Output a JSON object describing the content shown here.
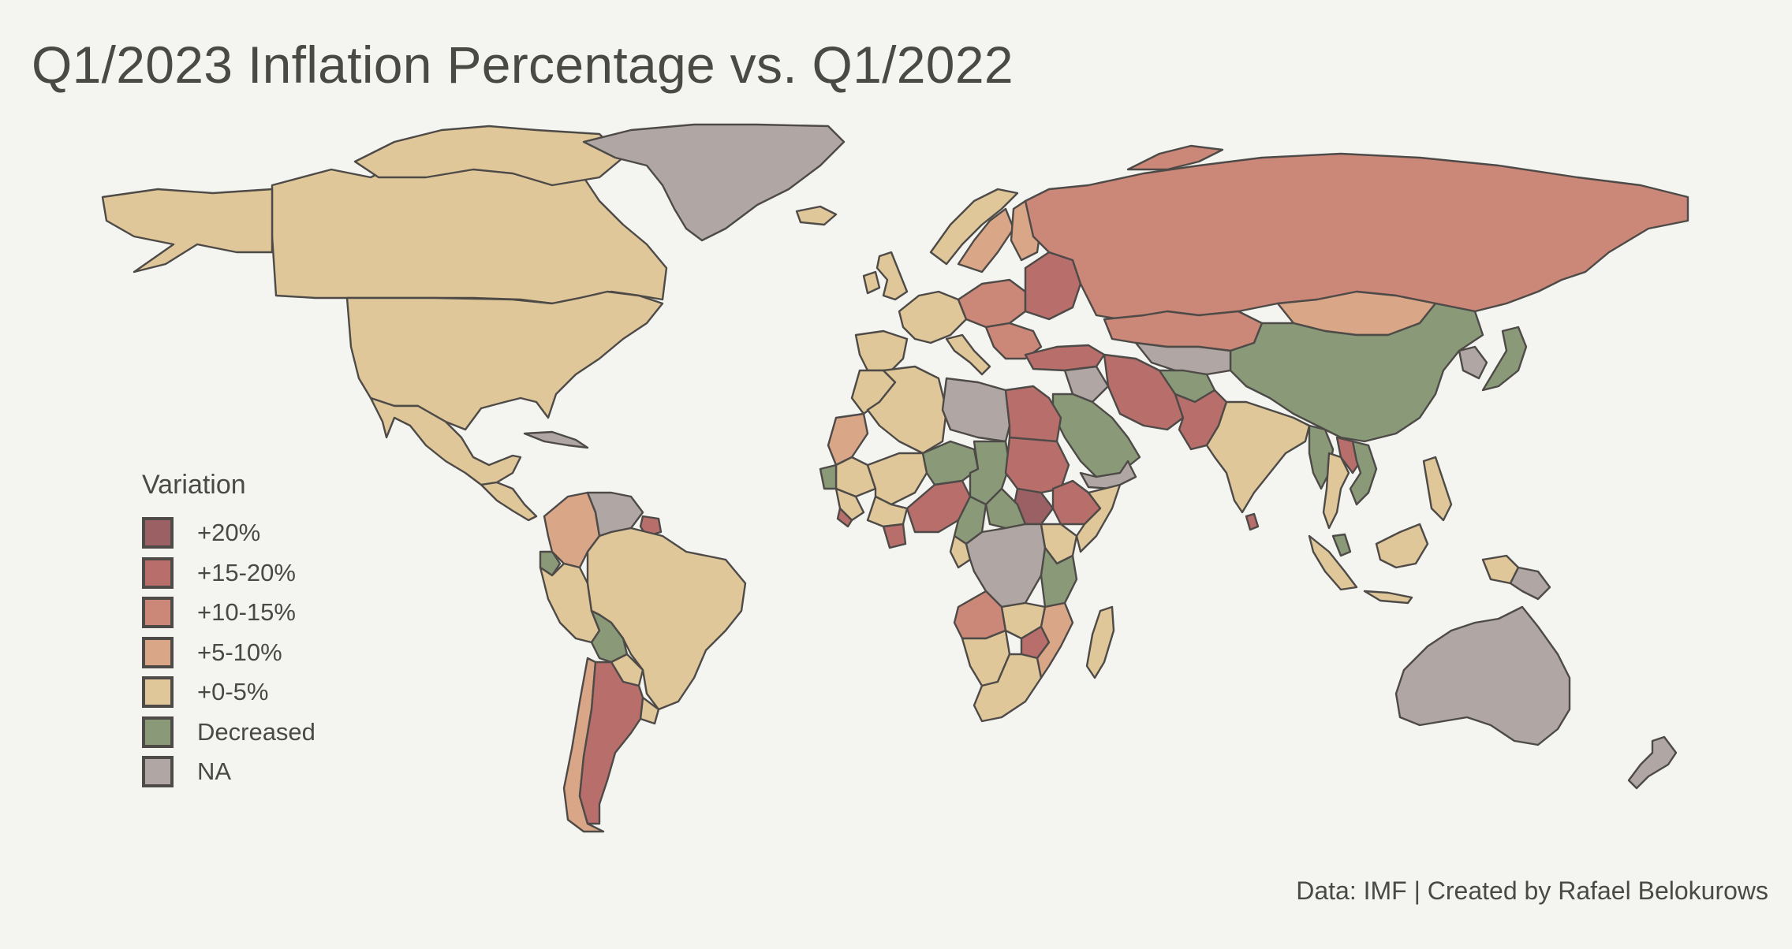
{
  "title": "Q1/2023 Inflation Percentage vs. Q1/2022",
  "caption": "Data: IMF | Created by Rafael Belokurows",
  "legend": {
    "title": "Variation",
    "items": [
      {
        "label": "+20%",
        "color": "#9a6064"
      },
      {
        "label": "+15-20%",
        "color": "#b86e6a"
      },
      {
        "label": "+10-15%",
        "color": "#cb8778"
      },
      {
        "label": "+5-10%",
        "color": "#d9a688"
      },
      {
        "label": "+0-5%",
        "color": "#dfc799"
      },
      {
        "label": "Decreased",
        "color": "#8a9a78"
      },
      {
        "label": "NA",
        "color": "#b0a7a4"
      }
    ]
  },
  "regions": [
    {
      "name": "Canada",
      "category": "+0-5%"
    },
    {
      "name": "United States",
      "category": "+0-5%"
    },
    {
      "name": "Alaska",
      "category": "+0-5%"
    },
    {
      "name": "Greenland",
      "category": "NA"
    },
    {
      "name": "Mexico",
      "category": "+0-5%"
    },
    {
      "name": "Cuba",
      "category": "NA"
    },
    {
      "name": "Colombia",
      "category": "+5-10%"
    },
    {
      "name": "Venezuela",
      "category": "NA"
    },
    {
      "name": "Suriname",
      "category": "+15-20%"
    },
    {
      "name": "Ecuador",
      "category": "Decreased"
    },
    {
      "name": "Peru",
      "category": "+0-5%"
    },
    {
      "name": "Brazil",
      "category": "+0-5%"
    },
    {
      "name": "Bolivia",
      "category": "Decreased"
    },
    {
      "name": "Paraguay",
      "category": "+0-5%"
    },
    {
      "name": "Uruguay",
      "category": "+0-5%"
    },
    {
      "name": "Chile",
      "category": "+5-10%"
    },
    {
      "name": "Argentina",
      "category": "+15-20%"
    },
    {
      "name": "Iceland",
      "category": "+0-5%"
    },
    {
      "name": "United Kingdom",
      "category": "+0-5%"
    },
    {
      "name": "Ireland",
      "category": "+0-5%"
    },
    {
      "name": "Norway",
      "category": "+0-5%"
    },
    {
      "name": "Sweden",
      "category": "+5-10%"
    },
    {
      "name": "Finland",
      "category": "+5-10%"
    },
    {
      "name": "Western Europe",
      "category": "+0-5%"
    },
    {
      "name": "Iberia",
      "category": "+0-5%"
    },
    {
      "name": "Italy",
      "category": "+0-5%"
    },
    {
      "name": "Central Europe",
      "category": "+10-15%"
    },
    {
      "name": "Eastern Europe",
      "category": "+15-20%"
    },
    {
      "name": "Balkans",
      "category": "+10-15%"
    },
    {
      "name": "Russia",
      "category": "+10-15%"
    },
    {
      "name": "Kazakhstan",
      "category": "+10-15%"
    },
    {
      "name": "Mongolia",
      "category": "+5-10%"
    },
    {
      "name": "China",
      "category": "Decreased"
    },
    {
      "name": "Korea",
      "category": "NA"
    },
    {
      "name": "Japan",
      "category": "Decreased"
    },
    {
      "name": "Turkey",
      "category": "+15-20%"
    },
    {
      "name": "Central Asia",
      "category": "NA"
    },
    {
      "name": "Iran",
      "category": "+15-20%"
    },
    {
      "name": "Afghanistan",
      "category": "Decreased"
    },
    {
      "name": "Pakistan",
      "category": "+15-20%"
    },
    {
      "name": "Saudi Arabia",
      "category": "Decreased"
    },
    {
      "name": "Yemen",
      "category": "NA"
    },
    {
      "name": "Iraq",
      "category": "NA"
    },
    {
      "name": "India",
      "category": "+0-5%"
    },
    {
      "name": "Sri Lanka",
      "category": "+15-20%"
    },
    {
      "name": "Myanmar",
      "category": "Decreased"
    },
    {
      "name": "Thailand",
      "category": "+0-5%"
    },
    {
      "name": "Laos",
      "category": "+15-20%"
    },
    {
      "name": "Vietnam",
      "category": "Decreased"
    },
    {
      "name": "Malaysia",
      "category": "Decreased"
    },
    {
      "name": "Indonesia Sumatra",
      "category": "+0-5%"
    },
    {
      "name": "Indonesia Java",
      "category": "+0-5%"
    },
    {
      "name": "Borneo",
      "category": "+0-5%"
    },
    {
      "name": "Philippines",
      "category": "+0-5%"
    },
    {
      "name": "New Guinea",
      "category": "+0-5%"
    },
    {
      "name": "Papua New Guinea",
      "category": "NA"
    },
    {
      "name": "Australia",
      "category": "NA"
    },
    {
      "name": "New Zealand",
      "category": "NA"
    },
    {
      "name": "Morocco",
      "category": "+0-5%"
    },
    {
      "name": "Western Sahara",
      "category": "+5-10%"
    },
    {
      "name": "Algeria",
      "category": "+0-5%"
    },
    {
      "name": "Libya",
      "category": "NA"
    },
    {
      "name": "Egypt",
      "category": "+15-20%"
    },
    {
      "name": "Mauritania",
      "category": "+0-5%"
    },
    {
      "name": "Mali",
      "category": "+0-5%"
    },
    {
      "name": "Niger",
      "category": "Decreased"
    },
    {
      "name": "Chad",
      "category": "Decreased"
    },
    {
      "name": "Sudan",
      "category": "+15-20%"
    },
    {
      "name": "South Sudan",
      "category": "+20%"
    },
    {
      "name": "Ethiopia",
      "category": "+15-20%"
    },
    {
      "name": "Somalia",
      "category": "+0-5%"
    },
    {
      "name": "Senegal",
      "category": "Decreased"
    },
    {
      "name": "Guinea",
      "category": "+0-5%"
    },
    {
      "name": "Sierra Leone",
      "category": "+15-20%"
    },
    {
      "name": "Ghana",
      "category": "+15-20%"
    },
    {
      "name": "Burkina Faso",
      "category": "+0-5%"
    },
    {
      "name": "Nigeria",
      "category": "+15-20%"
    },
    {
      "name": "Cameroon",
      "category": "Decreased"
    },
    {
      "name": "Central African Republic",
      "category": "Decreased"
    },
    {
      "name": "DR Congo",
      "category": "NA"
    },
    {
      "name": "Gabon",
      "category": "+0-5%"
    },
    {
      "name": "Kenya",
      "category": "+0-5%"
    },
    {
      "name": "Tanzania",
      "category": "Decreased"
    },
    {
      "name": "Angola",
      "category": "+10-15%"
    },
    {
      "name": "Zambia",
      "category": "+0-5%"
    },
    {
      "name": "Zimbabwe",
      "category": "+15-20%"
    },
    {
      "name": "Mozambique",
      "category": "+5-10%"
    },
    {
      "name": "Namibia",
      "category": "+0-5%"
    },
    {
      "name": "South Africa",
      "category": "+0-5%"
    },
    {
      "name": "Madagascar",
      "category": "+0-5%"
    }
  ]
}
